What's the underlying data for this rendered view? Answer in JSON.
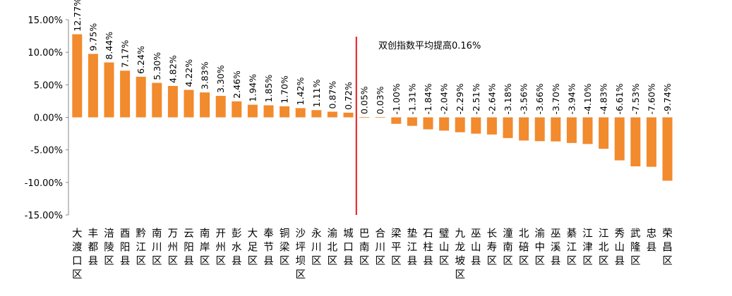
{
  "chart_data": {
    "type": "bar",
    "title": "",
    "xlabel": "",
    "ylabel": "",
    "ylim": [
      -15,
      15
    ],
    "yticks": [
      15,
      10,
      5,
      0,
      -5,
      -10,
      -15
    ],
    "ytick_labels": [
      "15.00%",
      "10.00%",
      "5.00%",
      "0.00%",
      "-5.00%",
      "-10.00%",
      "-15.00%"
    ],
    "grid": false,
    "legend": "none",
    "bar_color": "#F28A2E",
    "reference_line_color": "#E8191F",
    "categories": [
      "大渡口区",
      "丰都县",
      "涪陵区",
      "酉阳县",
      "黔江区",
      "南川区",
      "万州区",
      "云阳县",
      "南岸区",
      "开州区",
      "彭水县",
      "大足区",
      "奉节县",
      "铜梁区",
      "沙坪坝区",
      "永川区",
      "渝北区",
      "城口县",
      "巴南区",
      "合川区",
      "梁平区",
      "垫江县",
      "石柱县",
      "璧山区",
      "九龙坡区",
      "巫山县",
      "长寿区",
      "潼南区",
      "北碚区",
      "渝中区",
      "巫溪县",
      "綦江区",
      "江津区",
      "江北区",
      "秀山县",
      "武隆区",
      "忠县",
      "荣昌区"
    ],
    "values": [
      12.77,
      9.75,
      8.44,
      7.17,
      6.24,
      5.3,
      4.82,
      4.22,
      3.83,
      3.3,
      2.46,
      1.94,
      1.85,
      1.7,
      1.42,
      1.11,
      0.87,
      0.72,
      0.05,
      0.03,
      -1.0,
      -1.31,
      -1.84,
      -2.04,
      -2.29,
      -2.51,
      -2.64,
      -3.18,
      -3.56,
      -3.66,
      -3.7,
      -3.94,
      -4.1,
      -4.83,
      -6.61,
      -7.53,
      -7.6,
      -9.74
    ],
    "value_labels": [
      "12.77%",
      "9.75%",
      "8.44%",
      "7.17%",
      "6.24%",
      "5.30%",
      "4.82%",
      "4.22%",
      "3.83%",
      "3.30%",
      "2.46%",
      "1.94%",
      "1.85%",
      "1.70%",
      "1.42%",
      "1.11%",
      "0.87%",
      "0.72%",
      "0.05%",
      "0.03%",
      "-1.00%",
      "-1.31%",
      "-1.84%",
      "-2.04%",
      "-2.29%",
      "-2.51%",
      "-2.64%",
      "-3.18%",
      "-3.56%",
      "-3.66%",
      "-3.70%",
      "-3.94%",
      "-4.10%",
      "-4.83%",
      "-6.61%",
      "-7.53%",
      "-7.60%",
      "-9.74%"
    ],
    "reference_line": {
      "after_category": "城口县"
    },
    "annotation": "双创指数平均提高0.16%"
  }
}
